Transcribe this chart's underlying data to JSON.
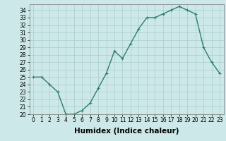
{
  "x": [
    0,
    1,
    2,
    3,
    4,
    5,
    6,
    7,
    8,
    9,
    10,
    11,
    12,
    13,
    14,
    15,
    16,
    17,
    18,
    19,
    20,
    21,
    22,
    23
  ],
  "y": [
    25.0,
    25.0,
    24.0,
    23.0,
    20.0,
    20.0,
    20.5,
    21.5,
    23.5,
    25.5,
    28.5,
    27.5,
    29.5,
    31.5,
    33.0,
    33.0,
    33.5,
    34.0,
    34.5,
    34.0,
    33.5,
    29.0,
    27.0,
    25.5
  ],
  "line_color": "#2e7d6e",
  "marker": "+",
  "marker_size": 3,
  "line_width": 1.0,
  "xlabel": "Humidex (Indice chaleur)",
  "xlim": [
    -0.5,
    23.5
  ],
  "ylim": [
    20,
    34.8
  ],
  "yticks": [
    20,
    21,
    22,
    23,
    24,
    25,
    26,
    27,
    28,
    29,
    30,
    31,
    32,
    33,
    34
  ],
  "xtick_labels": [
    "0",
    "1",
    "2",
    "3",
    "4",
    "5",
    "6",
    "7",
    "8",
    "9",
    "10",
    "11",
    "12",
    "13",
    "14",
    "15",
    "16",
    "17",
    "18",
    "19",
    "20",
    "21",
    "22",
    "23"
  ],
  "background_color": "#cce8e8",
  "grid_color": "#aacccc",
  "tick_fontsize": 5.5,
  "xlabel_fontsize": 7.5
}
